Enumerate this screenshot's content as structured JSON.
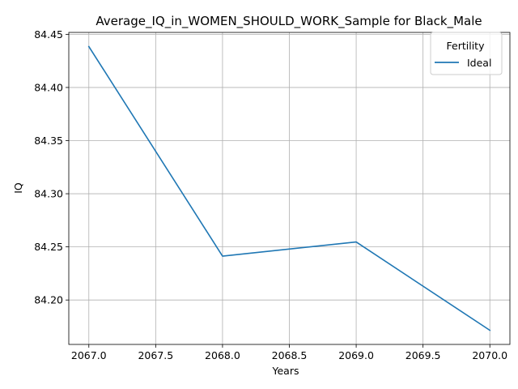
{
  "chart_data": {
    "type": "line",
    "title": "Average_IQ_in_WOMEN_SHOULD_WORK_Sample for Black_Male",
    "xlabel": "Years",
    "ylabel": "IQ",
    "x": [
      2067,
      2068,
      2069,
      2070
    ],
    "series": [
      {
        "name": "Ideal",
        "color": "#1f77b4",
        "values": [
          84.4385,
          84.2413,
          84.2546,
          84.1715
        ]
      }
    ],
    "xlim": [
      2066.85,
      2070.15
    ],
    "ylim": [
      84.1582,
      84.4518
    ],
    "x_ticks": [
      "2067.0",
      "2067.5",
      "2068.0",
      "2068.5",
      "2069.0",
      "2069.5",
      "2070.0"
    ],
    "x_tick_values": [
      2067.0,
      2067.5,
      2068.0,
      2068.5,
      2069.0,
      2069.5,
      2070.0
    ],
    "y_ticks": [
      "84.20",
      "84.25",
      "84.30",
      "84.35",
      "84.40",
      "84.45"
    ],
    "y_tick_values": [
      84.2,
      84.25,
      84.3,
      84.35,
      84.4,
      84.45
    ],
    "grid": true,
    "legend": {
      "title": "Fertility",
      "placement": "upper right"
    }
  }
}
